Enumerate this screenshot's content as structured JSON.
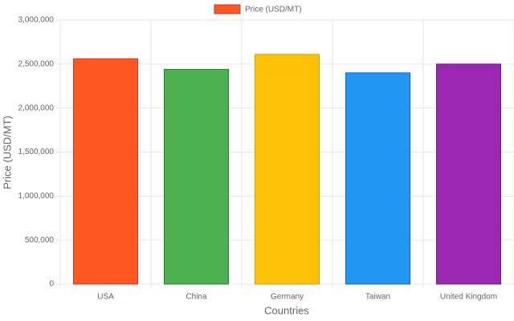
{
  "chart_data": {
    "type": "bar",
    "categories": [
      "USA",
      "China",
      "Germany",
      "Taiwan",
      "United Kingdom"
    ],
    "series": [
      {
        "name": "Price (USD/MT)",
        "colors": [
          "#FF5722",
          "#4CAF50",
          "#FFC107",
          "#2196F3",
          "#9C27B0"
        ],
        "border_colors": [
          "#c0392b",
          "#2e7d32",
          "#d4a000",
          "#1565c0",
          "#6a1b9a"
        ],
        "values": [
          2560000,
          2440000,
          2610000,
          2400000,
          2500000
        ]
      }
    ],
    "x_label": "Countries",
    "y_label": "Price (USD/MT)",
    "ylim": [
      0,
      3000000
    ],
    "yticks": [
      0,
      {
        "value": 500000,
        "label": "500,000"
      },
      {
        "value": 1000000,
        "label": "1,000,000"
      },
      {
        "value": 1500000,
        "label": "1,500,000"
      },
      {
        "value": 2000000,
        "label": "2,000,000"
      },
      {
        "value": 2500000,
        "label": "2,500,000"
      },
      {
        "value": 3000000,
        "label": "3,000,000"
      }
    ],
    "grid": true,
    "legend": "top"
  }
}
